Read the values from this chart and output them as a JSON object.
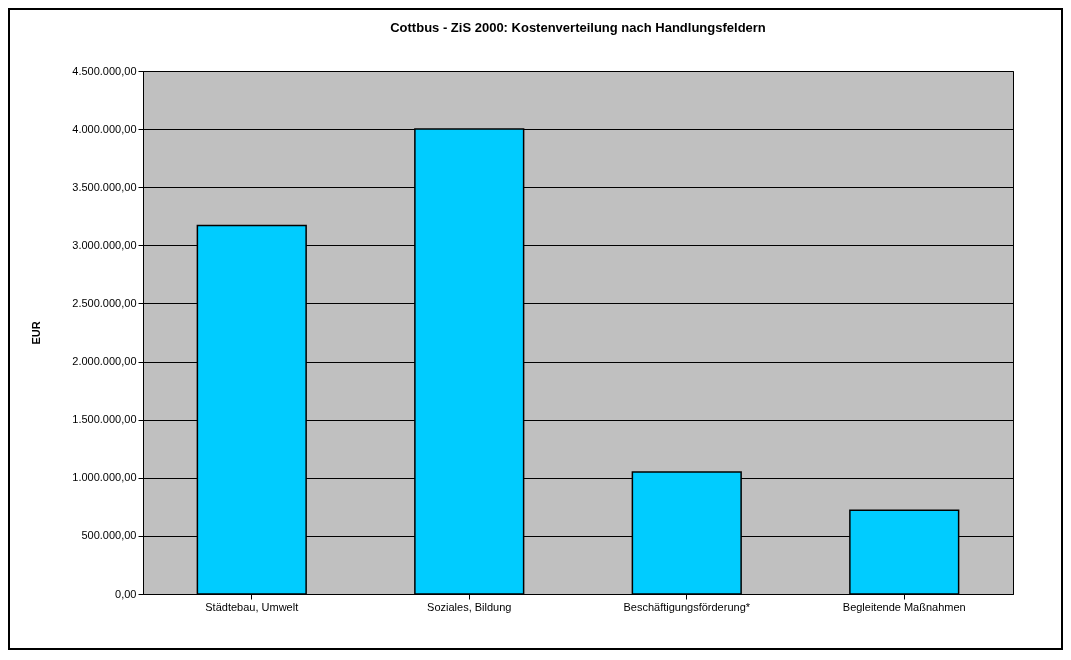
{
  "chart_data": {
    "type": "bar",
    "title": "Cottbus - ZiS 2000: Kostenverteilung nach Handlungsfeldern",
    "ylabel": "EUR",
    "categories": [
      "Städtebau, Umwelt",
      "Soziales, Bildung",
      "Beschäftigungsförderung*",
      "Begleitende Maßnahmen"
    ],
    "values": [
      3170000,
      4000000,
      1050000,
      720000
    ],
    "color": "#00ccff",
    "ylim": [
      0,
      4500000
    ],
    "yticks": [
      {
        "value": 0,
        "label": "0,00"
      },
      {
        "value": 500000,
        "label": "500.000,00"
      },
      {
        "value": 1000000,
        "label": "1.000.000,00"
      },
      {
        "value": 1500000,
        "label": "1.500.000,00"
      },
      {
        "value": 2000000,
        "label": "2.000.000,00"
      },
      {
        "value": 2500000,
        "label": "2.500.000,00"
      },
      {
        "value": 3000000,
        "label": "3.000.000,00"
      },
      {
        "value": 3500000,
        "label": "3.500.000,00"
      },
      {
        "value": 4000000,
        "label": "4.000.000,00"
      },
      {
        "value": 4500000,
        "label": "4.500.000,00"
      }
    ],
    "grid": "y"
  }
}
